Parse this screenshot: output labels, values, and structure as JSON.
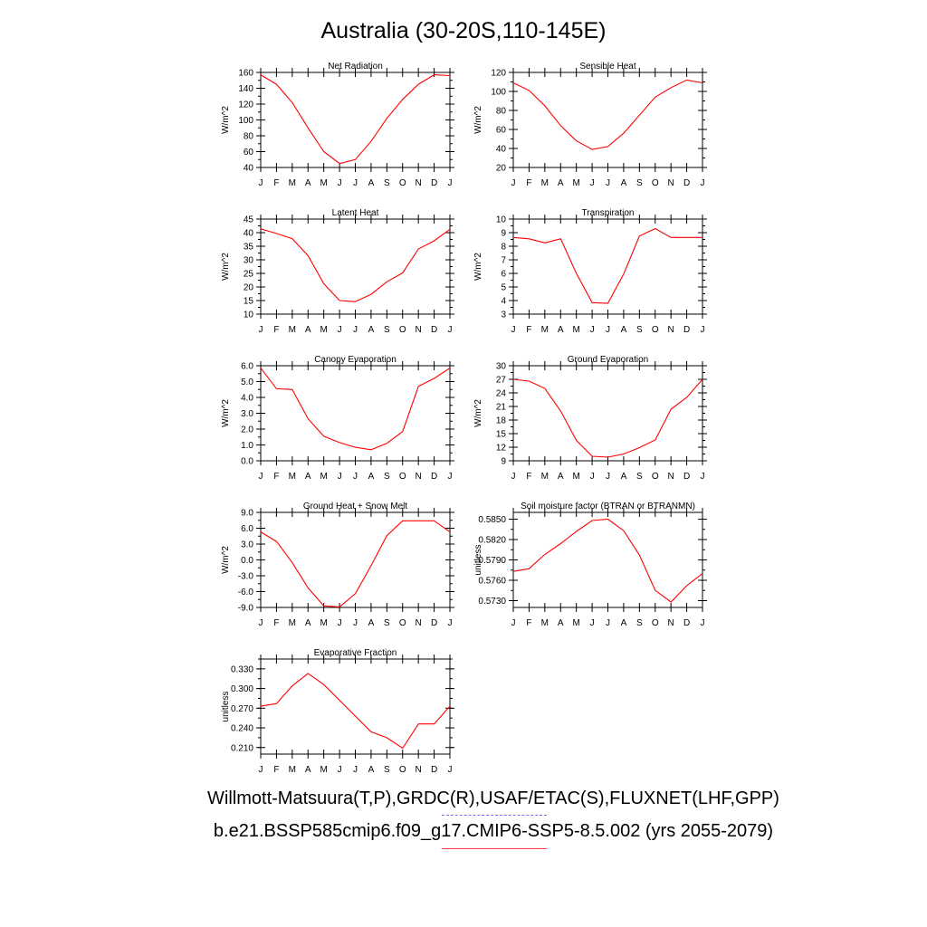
{
  "title": "Australia (30-20S,110-145E)",
  "footer": {
    "line1": "Willmott-Matsuura(T,P),GRDC(R),USAF/ETAC(S),FLUXNET(LHF,GPP)",
    "line2": "b.e21.BSSP585cmip6.f09_g17.CMIP6-SSP5-8.5.002 (yrs 2055-2079)"
  },
  "colors": {
    "line": "#ff0000",
    "obs_legend": "#7070ff",
    "model_legend": "#ff4040"
  },
  "months": [
    "J",
    "F",
    "M",
    "A",
    "M",
    "J",
    "J",
    "A",
    "S",
    "O",
    "N",
    "D",
    "J"
  ],
  "chart_data": [
    {
      "type": "line",
      "title": "Net Radiation",
      "ylabel": "W/m^2",
      "ylim": [
        40,
        160
      ],
      "yticks": [
        "160",
        "140",
        "120",
        "100",
        "80",
        "60",
        "40"
      ],
      "series": [
        {
          "values": [
            157,
            145,
            122,
            90,
            60,
            45,
            50,
            73,
            102,
            126,
            145,
            157,
            156
          ]
        }
      ]
    },
    {
      "type": "line",
      "title": "Sensible Heat",
      "ylabel": "W/m^2",
      "ylim": [
        20,
        120
      ],
      "yticks": [
        "120",
        "100",
        "80",
        "60",
        "40",
        "20"
      ],
      "series": [
        {
          "values": [
            109,
            101,
            85,
            64,
            48,
            39,
            42,
            56,
            75,
            94,
            104,
            112,
            109
          ]
        }
      ]
    },
    {
      "type": "line",
      "title": "Latent Heat",
      "ylabel": "W/m^2",
      "ylim": [
        10,
        45
      ],
      "yticks": [
        "45",
        "40",
        "35",
        "30",
        "25",
        "20",
        "15",
        "10"
      ],
      "series": [
        {
          "values": [
            41.4,
            39.7,
            37.8,
            31.5,
            21.2,
            15.0,
            14.6,
            17.3,
            21.9,
            25.2,
            34.0,
            37.0,
            41.2
          ]
        }
      ]
    },
    {
      "type": "line",
      "title": "Transpiration",
      "ylabel": "W/m^2",
      "ylim": [
        3,
        10
      ],
      "yticks": [
        "10",
        "9",
        "8",
        "7",
        "6",
        "5",
        "4",
        "3"
      ],
      "series": [
        {
          "values": [
            8.65,
            8.55,
            8.25,
            8.55,
            6.0,
            3.85,
            3.8,
            5.95,
            8.75,
            9.3,
            8.65,
            8.65,
            8.65
          ]
        }
      ]
    },
    {
      "type": "line",
      "title": "Canopy Evaporation",
      "ylabel": "W/m^2",
      "ylim": [
        0,
        6
      ],
      "yticks": [
        "6.0",
        "5.0",
        "4.0",
        "3.0",
        "2.0",
        "1.0",
        "0.0"
      ],
      "series": [
        {
          "values": [
            5.85,
            4.55,
            4.5,
            2.65,
            1.55,
            1.15,
            0.85,
            0.7,
            1.1,
            1.85,
            4.7,
            5.2,
            5.85
          ]
        }
      ]
    },
    {
      "type": "line",
      "title": "Ground Evaporation",
      "ylabel": "W/m^2",
      "ylim": [
        9,
        30
      ],
      "yticks": [
        "30",
        "27",
        "24",
        "21",
        "18",
        "15",
        "12",
        "9"
      ],
      "series": [
        {
          "values": [
            27.0,
            26.6,
            25.0,
            20.0,
            13.5,
            10.0,
            9.8,
            10.5,
            11.9,
            13.6,
            20.4,
            23.0,
            27.0
          ]
        }
      ]
    },
    {
      "type": "line",
      "title": "Ground Heat + Snow Melt",
      "ylabel": "W/m^2",
      "ylim": [
        -9,
        9
      ],
      "yticks": [
        "9.0",
        "6.0",
        "3.0",
        "0.0",
        "-3.0",
        "-6.0",
        "-9.0"
      ],
      "series": [
        {
          "values": [
            5.3,
            3.5,
            -0.5,
            -5.3,
            -8.7,
            -8.9,
            -6.4,
            -1.1,
            4.6,
            7.4,
            7.4,
            7.4,
            5.3
          ]
        }
      ]
    },
    {
      "type": "line",
      "title": "Soil moisture factor (BTRAN or BTRANMN)",
      "ylabel": "unitless",
      "ylim": [
        0.572,
        0.586
      ],
      "yticks": [
        "0.5850",
        "0.5820",
        "0.5790",
        "0.5760",
        "0.5730"
      ],
      "series": [
        {
          "values": [
            0.5773,
            0.5777,
            0.5798,
            0.5814,
            0.5832,
            0.5848,
            0.585,
            0.5833,
            0.5797,
            0.5745,
            0.5728,
            0.5752,
            0.577
          ]
        }
      ]
    },
    {
      "type": "line",
      "title": "Evaporative Fraction",
      "ylabel": "unitless",
      "ylim": [
        0.2,
        0.345
      ],
      "yticks": [
        "0.330",
        "0.300",
        "0.270",
        "0.240",
        "0.210"
      ],
      "series": [
        {
          "values": [
            0.273,
            0.277,
            0.304,
            0.323,
            0.306,
            0.282,
            0.258,
            0.234,
            0.225,
            0.209,
            0.246,
            0.246,
            0.273
          ]
        }
      ]
    }
  ]
}
